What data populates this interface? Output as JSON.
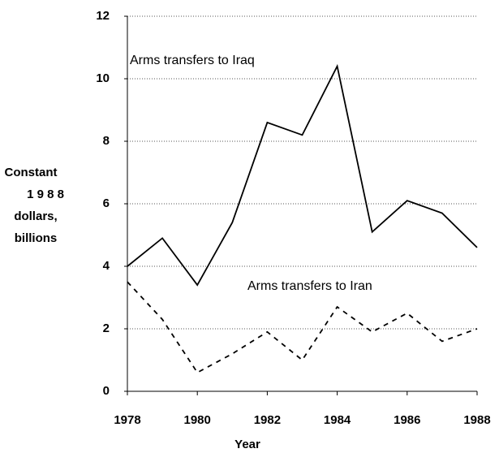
{
  "chart_data": {
    "type": "line",
    "x": [
      1978,
      1979,
      1980,
      1981,
      1982,
      1983,
      1984,
      1985,
      1986,
      1987,
      1988
    ],
    "series": [
      {
        "name": "Arms transfers to Iraq",
        "color": "#000000",
        "style": "solid",
        "values": [
          4.0,
          4.9,
          3.4,
          5.4,
          8.6,
          8.2,
          10.4,
          5.1,
          6.1,
          5.7,
          4.6
        ]
      },
      {
        "name": "Arms transfers to Iran",
        "color": "#000000",
        "style": "dashed",
        "values": [
          3.5,
          2.3,
          0.6,
          1.2,
          1.9,
          1.0,
          2.7,
          1.9,
          2.5,
          1.6,
          2.0
        ]
      }
    ],
    "xlim": [
      1978,
      1988
    ],
    "xticks": [
      1978,
      1980,
      1982,
      1984,
      1986,
      1988
    ],
    "ylim": [
      0,
      12
    ],
    "yticks": [
      0,
      2,
      4,
      6,
      8,
      10,
      12
    ],
    "xlabel": "Year",
    "ylabel": [
      "Constant",
      "1 9 8 8",
      "dollars,",
      "billions"
    ],
    "grid": true
  }
}
